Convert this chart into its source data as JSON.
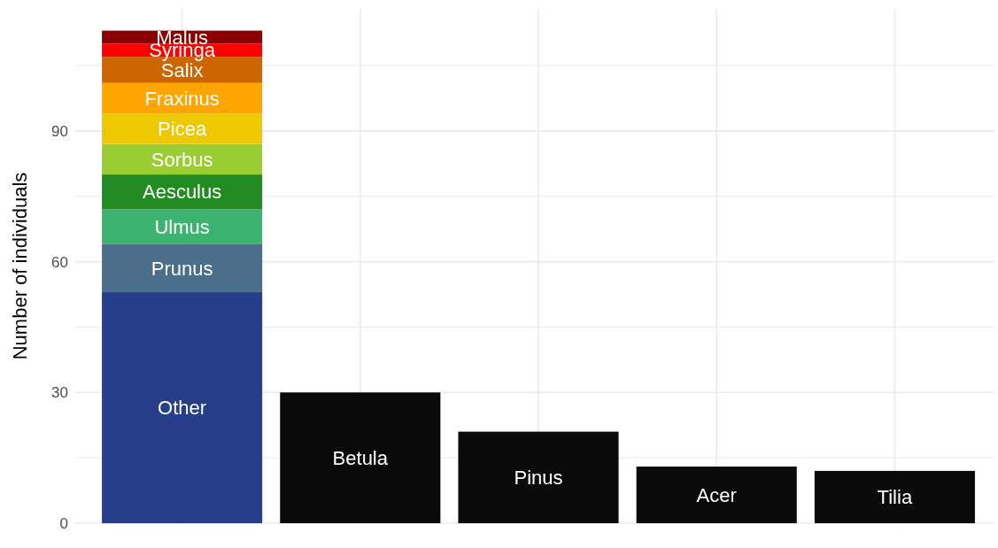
{
  "chart_data": {
    "type": "bar",
    "stacked": true,
    "ylabel": "Number of individuals",
    "categories": [
      null,
      null,
      null,
      null,
      null
    ],
    "ylim": [
      0,
      118
    ],
    "yticks": [
      0,
      {
        "value": 15,
        "label": null
      },
      30,
      {
        "value": 45,
        "label": null
      },
      60,
      {
        "value": 75,
        "label": null
      },
      90,
      {
        "value": 105,
        "label": null
      }
    ],
    "grid": true,
    "series": [
      {
        "name": "Other",
        "color": "#273f8a",
        "values": [
          53,
          null,
          null,
          null,
          null
        ]
      },
      {
        "name": "Prunus",
        "color": "#4b6e8a",
        "values": [
          11,
          null,
          null,
          null,
          null
        ]
      },
      {
        "name": "Ulmus",
        "color": "#3cb371",
        "values": [
          8,
          null,
          null,
          null,
          null
        ]
      },
      {
        "name": "Aesculus",
        "color": "#228b22",
        "values": [
          8,
          null,
          null,
          null,
          null
        ]
      },
      {
        "name": "Sorbus",
        "color": "#9acd32",
        "values": [
          7,
          null,
          null,
          null,
          null
        ]
      },
      {
        "name": "Picea",
        "color": "#eec900",
        "values": [
          7,
          null,
          null,
          null,
          null
        ]
      },
      {
        "name": "Fraxinus",
        "color": "#ffa500",
        "values": [
          7,
          null,
          null,
          null,
          null
        ]
      },
      {
        "name": "Salix",
        "color": "#cd6600",
        "values": [
          6,
          null,
          null,
          null,
          null
        ]
      },
      {
        "name": "Syringa",
        "color": "#ff0000",
        "values": [
          3,
          null,
          null,
          null,
          null
        ]
      },
      {
        "name": "Malus",
        "color": "#8b0000",
        "values": [
          3,
          null,
          null,
          null,
          null
        ]
      },
      {
        "name": "Betula",
        "color": "#0a0a0a",
        "values": [
          null,
          30,
          null,
          null,
          null
        ]
      },
      {
        "name": "Pinus",
        "color": "#0a0a0a",
        "values": [
          null,
          null,
          21,
          null,
          null
        ]
      },
      {
        "name": "Acer",
        "color": "#0a0a0a",
        "values": [
          null,
          null,
          null,
          13,
          null
        ]
      },
      {
        "name": "Tilia",
        "color": "#0a0a0a",
        "values": [
          null,
          null,
          null,
          null,
          12
        ]
      }
    ]
  }
}
